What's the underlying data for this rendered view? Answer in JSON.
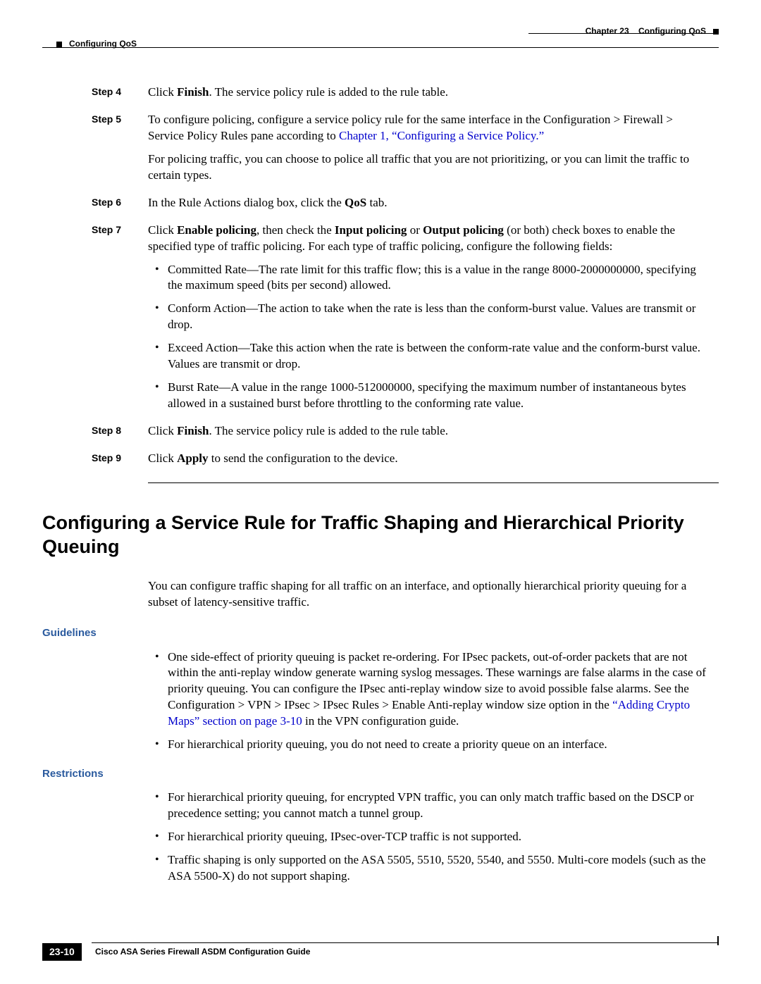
{
  "header": {
    "chapter_label": "Chapter 23",
    "chapter_title": "Configuring QoS",
    "breadcrumb": "Configuring QoS"
  },
  "steps": [
    {
      "label": "Step 4",
      "paragraphs": [
        {
          "runs": [
            {
              "t": "Click "
            },
            {
              "t": "Finish",
              "bold": true
            },
            {
              "t": ". The service policy rule is added to the rule table."
            }
          ]
        }
      ]
    },
    {
      "label": "Step 5",
      "paragraphs": [
        {
          "runs": [
            {
              "t": "To configure policing, configure a service policy rule for the same interface in the Configuration > Firewall > Service Policy Rules pane according to "
            },
            {
              "t": "Chapter 1, “Configuring a Service Policy.”",
              "link": true
            }
          ]
        },
        {
          "runs": [
            {
              "t": "For policing traffic, you can choose to police all traffic that you are not prioritizing, or you can limit the traffic to certain types."
            }
          ]
        }
      ]
    },
    {
      "label": "Step 6",
      "paragraphs": [
        {
          "runs": [
            {
              "t": "In the Rule Actions dialog box, click the "
            },
            {
              "t": "QoS",
              "bold": true
            },
            {
              "t": " tab."
            }
          ]
        }
      ]
    },
    {
      "label": "Step 7",
      "paragraphs": [
        {
          "runs": [
            {
              "t": "Click "
            },
            {
              "t": "Enable policing",
              "bold": true
            },
            {
              "t": ", then check the "
            },
            {
              "t": "Input policing",
              "bold": true
            },
            {
              "t": " or "
            },
            {
              "t": "Output policing",
              "bold": true
            },
            {
              "t": " (or both) check boxes to enable the specified type of traffic policing. For each type of traffic policing, configure the following fields:"
            }
          ]
        }
      ],
      "bullets": [
        "Committed Rate—The rate limit for this traffic flow; this is a value in the range 8000-2000000000, specifying the maximum speed (bits per second) allowed.",
        "Conform Action—The action to take when the rate is less than the conform-burst value. Values are transmit or drop.",
        "Exceed Action—Take this action when the rate is between the conform-rate value and the conform-burst value. Values are transmit or drop.",
        "Burst Rate—A value in the range 1000-512000000, specifying the maximum number of instantaneous bytes allowed in a sustained burst before throttling to the conforming rate value."
      ]
    },
    {
      "label": "Step 8",
      "paragraphs": [
        {
          "runs": [
            {
              "t": "Click "
            },
            {
              "t": "Finish",
              "bold": true
            },
            {
              "t": ". The service policy rule is added to the rule table."
            }
          ]
        }
      ]
    },
    {
      "label": "Step 9",
      "paragraphs": [
        {
          "runs": [
            {
              "t": "Click "
            },
            {
              "t": "Apply",
              "bold": true
            },
            {
              "t": " to send the configuration to the device."
            }
          ]
        }
      ]
    }
  ],
  "section": {
    "title": "Configuring a Service Rule for Traffic Shaping and Hierarchical Priority Queuing",
    "intro": "You can configure traffic shaping for all traffic on an interface, and optionally hierarchical priority queuing for a subset of latency-sensitive traffic.",
    "guidelines_label": "Guidelines",
    "guidelines": [
      {
        "runs": [
          {
            "t": "One side-effect of priority queuing is packet re-ordering. For IPsec packets, out-of-order packets that are not within the anti-replay window generate warning syslog messages. These warnings are false alarms in the case of priority queuing. You can configure the IPsec anti-replay window size to avoid possible false alarms. See the Configuration > VPN > IPsec > IPsec Rules > Enable Anti-replay window size option in the "
          },
          {
            "t": "“Adding Crypto Maps” section on page 3-10",
            "link": true
          },
          {
            "t": " in the VPN configuration guide."
          }
        ]
      },
      {
        "runs": [
          {
            "t": "For hierarchical priority queuing, you do not need to create a priority queue on an interface."
          }
        ]
      }
    ],
    "restrictions_label": "Restrictions",
    "restrictions": [
      {
        "runs": [
          {
            "t": "For hierarchical priority queuing, for encrypted VPN traffic, you can only match traffic based on the DSCP or precedence setting; you cannot match a tunnel group."
          }
        ]
      },
      {
        "runs": [
          {
            "t": "For hierarchical priority queuing, IPsec-over-TCP traffic is not supported."
          }
        ]
      },
      {
        "runs": [
          {
            "t": "Traffic shaping is only supported on the ASA 5505, 5510, 5520, 5540, and 5550. Multi-core models (such as the ASA 5500-X) do not support shaping."
          }
        ]
      }
    ]
  },
  "footer": {
    "title": "Cisco ASA Series Firewall ASDM Configuration Guide",
    "page": "23-10"
  },
  "colors": {
    "link": "#0000cc",
    "subhead": "#2a5a9e",
    "text": "#000000",
    "background": "#ffffff"
  }
}
